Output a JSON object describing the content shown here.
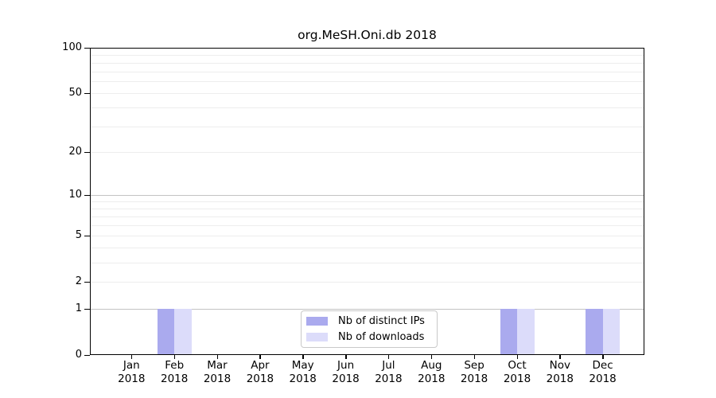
{
  "window": {
    "background": "#ffffff"
  },
  "chart_data": {
    "type": "bar",
    "title": "org.MeSH.Oni.db 2018",
    "categories": [
      "Jan",
      "Feb",
      "Mar",
      "Apr",
      "May",
      "Jun",
      "Jul",
      "Aug",
      "Sep",
      "Oct",
      "Nov",
      "Dec"
    ],
    "year": "2018",
    "series": [
      {
        "name": "Nb of distinct IPs",
        "color": "#aaaaee",
        "values": [
          0,
          1,
          0,
          0,
          0,
          0,
          0,
          0,
          0,
          1,
          0,
          1
        ]
      },
      {
        "name": "Nb of downloads",
        "color": "#dcdcfa",
        "values": [
          0,
          1,
          0,
          0,
          0,
          0,
          0,
          0,
          0,
          1,
          0,
          1
        ]
      }
    ],
    "xlabel": "",
    "ylabel": "",
    "y_scale": "log1p",
    "ylim": [
      0,
      100
    ],
    "y_ticks": [
      0,
      1,
      2,
      5,
      10,
      20,
      50,
      100
    ],
    "grid_major": [
      1,
      10,
      100
    ],
    "grid_minor": [
      2,
      3,
      4,
      5,
      6,
      7,
      8,
      9,
      20,
      30,
      40,
      50,
      60,
      70,
      80,
      90
    ],
    "legend_position": "bottom-center",
    "grid": "horizontal"
  },
  "colors": {
    "bar_distinct_ips": "#aaaaee",
    "bar_downloads": "#dcdcfa",
    "grid_major": "#c3c3c3",
    "grid_minor": "#ededed",
    "axis": "#000000",
    "legend_border": "#c9c9c9"
  }
}
